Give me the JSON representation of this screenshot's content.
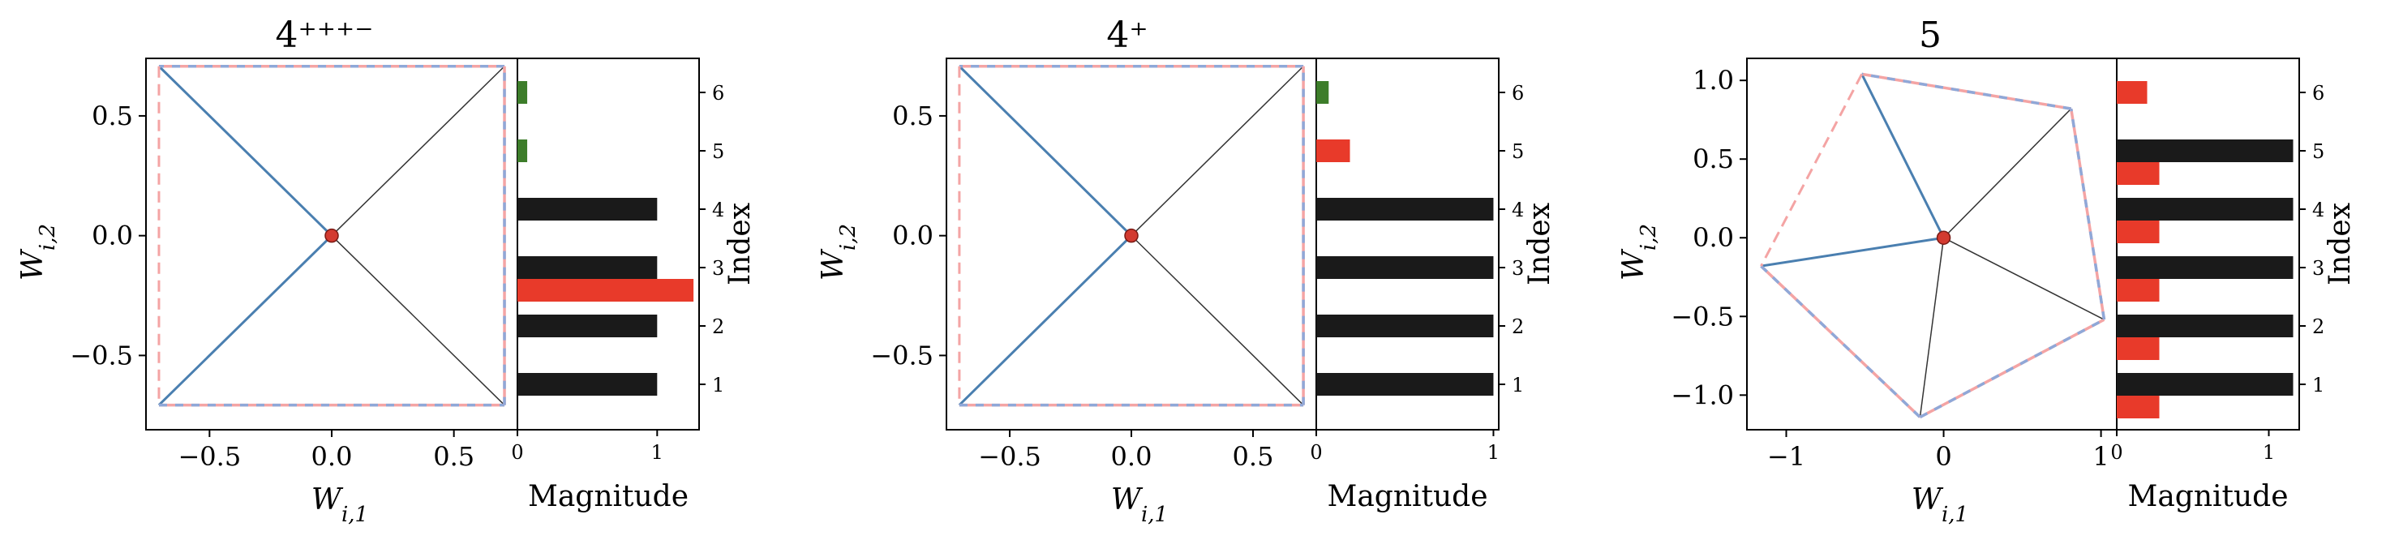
{
  "colors": {
    "blue": "#4a7fb0",
    "edge_black": "#333333",
    "dashed_red": "#f4a4a4",
    "dashed_blue": "#8fa8d8",
    "origin": "#d33a30",
    "bar_black": "#1a1a1a",
    "bar_red": "#e83a2a",
    "bar_green": "#3d7d2a"
  },
  "chart_data": [
    {
      "type": "scatter",
      "title": "4⁺⁺⁺⁻",
      "xlabel": "W_{i,1}",
      "ylabel": "W_{i,2}",
      "xticks": [
        "−0.5",
        "0.0",
        "0.5"
      ],
      "yticks": [
        "−0.5",
        "0.0",
        "0.5"
      ],
      "xtick_values": [
        -0.5,
        0.0,
        0.5
      ],
      "ytick_values": [
        -0.5,
        0.0,
        0.5
      ],
      "xlim": [
        -0.76,
        0.76
      ],
      "ylim": [
        -0.81,
        0.74
      ],
      "vertices": [
        [
          0.707,
          0.707
        ],
        [
          -0.707,
          0.707
        ],
        [
          -0.707,
          -0.707
        ],
        [
          0.707,
          -0.707
        ]
      ],
      "blue_spokes": [
        1,
        2
      ],
      "hull": [
        [
          0,
          1,
          "solid"
        ],
        [
          2,
          3,
          "solid"
        ],
        [
          3,
          0,
          "solid"
        ],
        [
          1,
          2,
          "dashed"
        ]
      ],
      "magnitude": {
        "xlabel": "Magnitude",
        "ylabel": "Index",
        "xticks": [
          "0",
          "1"
        ],
        "xtick_values": [
          0,
          1
        ],
        "xlim": [
          0,
          1.3
        ],
        "yticks": [
          "1",
          "2",
          "3",
          "4",
          "5",
          "6"
        ],
        "bars": [
          {
            "index": 1,
            "norm": 1.0,
            "interference": null,
            "polysemanticity": null
          },
          {
            "index": 2,
            "norm": 1.0,
            "interference": null,
            "polysemanticity": null
          },
          {
            "index": 3,
            "norm": 1.0,
            "interference": 1.26,
            "polysemanticity": null
          },
          {
            "index": 4,
            "norm": 1.0,
            "interference": null,
            "polysemanticity": null
          },
          {
            "index": 5,
            "norm": null,
            "interference": null,
            "polysemanticity": 0.07
          },
          {
            "index": 6,
            "norm": null,
            "interference": null,
            "polysemanticity": 0.07
          }
        ]
      }
    },
    {
      "type": "scatter",
      "title": "4⁺",
      "xlabel": "W_{i,1}",
      "ylabel": "W_{i,2}",
      "xticks": [
        "−0.5",
        "0.0",
        "0.5"
      ],
      "yticks": [
        "−0.5",
        "0.0",
        "0.5"
      ],
      "xtick_values": [
        -0.5,
        0.0,
        0.5
      ],
      "ytick_values": [
        -0.5,
        0.0,
        0.5
      ],
      "xlim": [
        -0.76,
        0.76
      ],
      "ylim": [
        -0.81,
        0.74
      ],
      "vertices": [
        [
          0.707,
          0.707
        ],
        [
          -0.707,
          0.707
        ],
        [
          -0.707,
          -0.707
        ],
        [
          0.707,
          -0.707
        ]
      ],
      "blue_spokes": [
        1,
        2
      ],
      "hull": [
        [
          0,
          1,
          "solid"
        ],
        [
          2,
          3,
          "solid"
        ],
        [
          3,
          0,
          "solid"
        ],
        [
          1,
          2,
          "dashed"
        ]
      ],
      "magnitude": {
        "xlabel": "Magnitude",
        "ylabel": "Index",
        "xticks": [
          "0",
          "1"
        ],
        "xtick_values": [
          0,
          1
        ],
        "xlim": [
          0,
          1.03
        ],
        "yticks": [
          "1",
          "2",
          "3",
          "4",
          "5",
          "6"
        ],
        "bars": [
          {
            "index": 1,
            "norm": 1.0,
            "interference": null,
            "polysemanticity": null
          },
          {
            "index": 2,
            "norm": 1.0,
            "interference": null,
            "polysemanticity": null
          },
          {
            "index": 3,
            "norm": 1.0,
            "interference": null,
            "polysemanticity": null
          },
          {
            "index": 4,
            "norm": 1.0,
            "interference": null,
            "polysemanticity": null
          },
          {
            "index": 5,
            "norm": null,
            "interference": 0.19,
            "polysemanticity": null
          },
          {
            "index": 6,
            "norm": null,
            "interference": null,
            "polysemanticity": 0.07
          }
        ]
      }
    },
    {
      "type": "scatter",
      "title": "5",
      "xlabel": "W_{i,1}",
      "ylabel": "W_{i,2}",
      "xticks": [
        "−1",
        "0",
        "1"
      ],
      "yticks": [
        "−1.0",
        "−0.5",
        "0.0",
        "0.5",
        "1.0"
      ],
      "xtick_values": [
        -1,
        0,
        1
      ],
      "ytick_values": [
        -1.0,
        -0.5,
        0.0,
        0.5,
        1.0
      ],
      "xlim": [
        -1.25,
        1.1
      ],
      "ylim": [
        -1.22,
        1.14
      ],
      "vertices": [
        [
          0.81,
          0.82
        ],
        [
          -0.52,
          1.04
        ],
        [
          -1.16,
          -0.18
        ],
        [
          -0.15,
          -1.14
        ],
        [
          1.02,
          -0.52
        ]
      ],
      "blue_spokes": [
        1,
        2
      ],
      "hull": [
        [
          0,
          1,
          "solid"
        ],
        [
          2,
          3,
          "solid"
        ],
        [
          3,
          4,
          "solid"
        ],
        [
          4,
          0,
          "solid"
        ],
        [
          1,
          2,
          "dashed"
        ]
      ],
      "magnitude": {
        "xlabel": "Magnitude",
        "ylabel": "Index",
        "xticks": [
          "0",
          "1"
        ],
        "xtick_values": [
          0,
          1
        ],
        "xlim": [
          0,
          1.2
        ],
        "yticks": [
          "1",
          "2",
          "3",
          "4",
          "5",
          "6"
        ],
        "bars": [
          {
            "index": 1,
            "norm": 1.16,
            "interference": 0.28,
            "polysemanticity": null
          },
          {
            "index": 2,
            "norm": 1.16,
            "interference": 0.28,
            "polysemanticity": null
          },
          {
            "index": 3,
            "norm": 1.16,
            "interference": 0.28,
            "polysemanticity": null
          },
          {
            "index": 4,
            "norm": 1.16,
            "interference": 0.28,
            "polysemanticity": null
          },
          {
            "index": 5,
            "norm": 1.16,
            "interference": 0.28,
            "polysemanticity": null
          },
          {
            "index": 6,
            "norm": null,
            "interference": 0.2,
            "polysemanticity": null
          }
        ]
      }
    }
  ]
}
